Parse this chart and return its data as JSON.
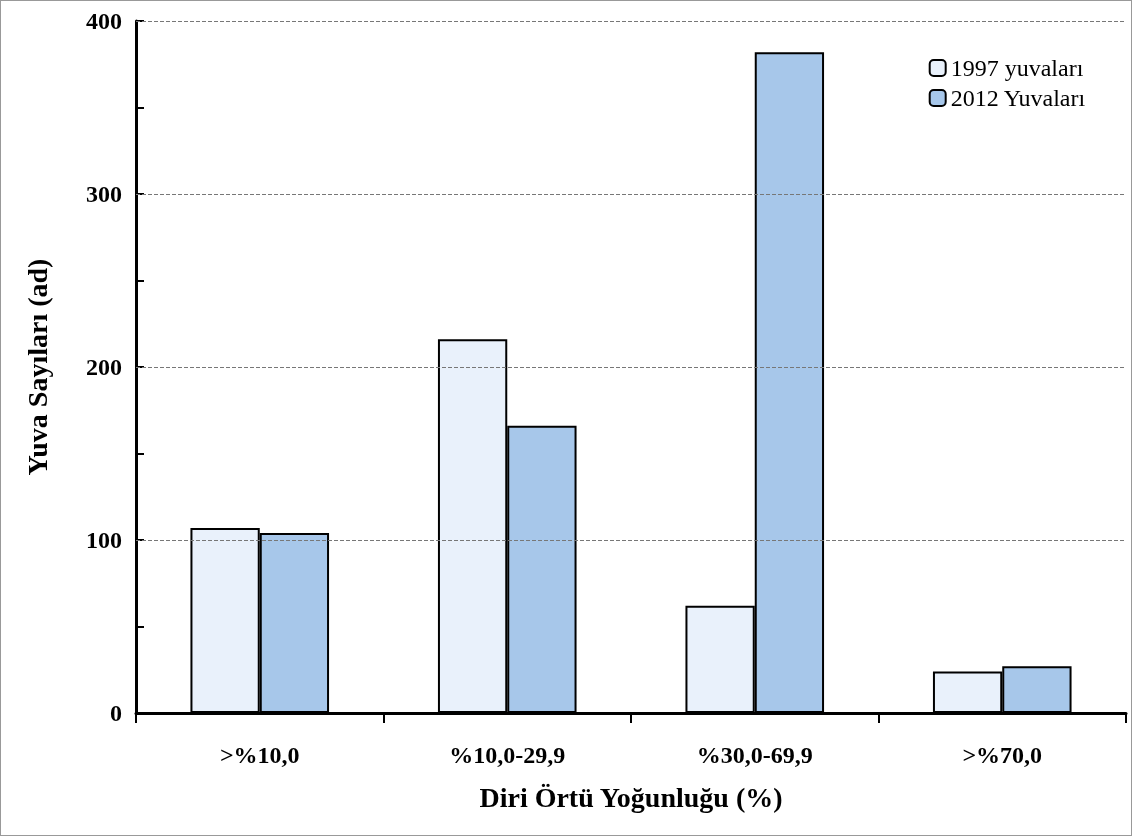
{
  "chart_data": {
    "type": "bar",
    "xlabel": "Diri Örtü Yoğunluğu (%)",
    "ylabel": "Yuva Sayıları (ad)",
    "categories": [
      ">%10,0",
      "%10,0-29,9",
      "%30,0-69,9",
      ">%70,0"
    ],
    "series": [
      {
        "name": "1997 yuvaları",
        "color": "#e9f1fb",
        "values": [
          107,
          216,
          62,
          24
        ]
      },
      {
        "name": "2012 Yuvaları",
        "color": "#a7c7ea",
        "values": [
          104,
          166,
          382,
          27
        ]
      }
    ],
    "ylim": [
      0,
      400
    ],
    "yticks": [
      0,
      {
        "value": 50,
        "label": null
      },
      100,
      {
        "value": 150,
        "label": null
      },
      200,
      {
        "value": 250,
        "label": null
      },
      300,
      {
        "value": 350,
        "label": null
      },
      400
    ],
    "grid": "y",
    "legend": "top right"
  }
}
